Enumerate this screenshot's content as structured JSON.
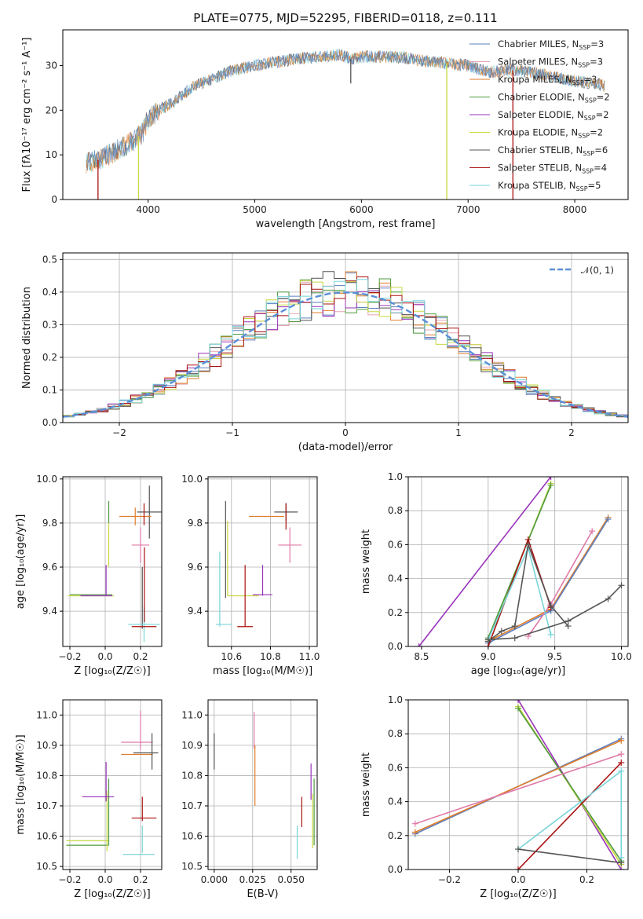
{
  "figure": {
    "title": "PLATE=0775, MJD=52295, FIBERID=0118, z=0.111"
  },
  "colors": {
    "Chabrier MILES": "#5b7fbf",
    "Salpeter MILES": "#e5a3b0",
    "Kroupa MILES": "#e07d2a",
    "Chabrier ELODIE": "#4e9a3e",
    "Salpeter ELODIE": "#9933bb",
    "Kroupa ELODIE": "#c8d840",
    "Chabrier STELIB": "#555555",
    "Salpeter STELIB": "#aa1111",
    "Kroupa STELIB": "#77d4d8",
    "Chabrier MILES (main)": "#5b7fbf",
    "normal_curve": "#5b8fd6",
    "pink": "#e07aa8",
    "grid": "#b0b0b0"
  },
  "chart_data": [
    {
      "id": "spectrum",
      "type": "line",
      "title": "PLATE=0775, MJD=52295, FIBERID=0118, z=0.111",
      "xlabel": "wavelength [Angstrom, rest frame]",
      "ylabel": "Flux [fλ10⁻¹⁷ erg cm⁻² s⁻¹ A⁻¹]",
      "xlim": [
        3200,
        8500
      ],
      "ylim": [
        0,
        38
      ],
      "xticks": [
        "4000",
        "5000",
        "6000",
        "7000",
        "8000"
      ],
      "yticks": [
        "0",
        "10",
        "20",
        "30"
      ],
      "grid": false,
      "legend_position": "right",
      "legend": [
        {
          "label": "Chabrier MILES, N",
          "sub": "SSP",
          "val": "=3",
          "color": "#5b7fbf"
        },
        {
          "label": "Salpeter MILES, N",
          "sub": "SSP",
          "val": "=3",
          "color": "#e5a3b0"
        },
        {
          "label": "Kroupa MILES, N",
          "sub": "SSP",
          "val": "=3",
          "color": "#e07d2a"
        },
        {
          "label": "Chabrier ELODIE, N",
          "sub": "SSP",
          "val": "=2",
          "color": "#4e9a3e"
        },
        {
          "label": "Salpeter ELODIE, N",
          "sub": "SSP",
          "val": "=2",
          "color": "#9933bb"
        },
        {
          "label": "Kroupa ELODIE, N",
          "sub": "SSP",
          "val": "=2",
          "color": "#c8d840"
        },
        {
          "label": "Chabrier STELIB, N",
          "sub": "SSP",
          "val": "=6",
          "color": "#555555"
        },
        {
          "label": "Salpeter STELIB, N",
          "sub": "SSP",
          "val": "=4",
          "color": "#aa1111"
        },
        {
          "label": "Kroupa STELIB, N",
          "sub": "SSP",
          "val": "=5",
          "color": "#77d4d8"
        }
      ],
      "continuum": [
        [
          3420,
          8
        ],
        [
          3550,
          9
        ],
        [
          3700,
          11
        ],
        [
          3850,
          13
        ],
        [
          3950,
          15
        ],
        [
          4000,
          18
        ],
        [
          4100,
          20
        ],
        [
          4250,
          22
        ],
        [
          4400,
          25
        ],
        [
          4600,
          27
        ],
        [
          4800,
          29
        ],
        [
          5000,
          30
        ],
        [
          5200,
          30.8
        ],
        [
          5400,
          31.5
        ],
        [
          5600,
          32
        ],
        [
          5800,
          32.5
        ],
        [
          5900,
          31.5
        ],
        [
          6000,
          32
        ],
        [
          6200,
          32
        ],
        [
          6400,
          31.8
        ],
        [
          6600,
          31
        ],
        [
          6800,
          30.5
        ],
        [
          7000,
          30
        ],
        [
          7200,
          28.5
        ],
        [
          7400,
          29
        ],
        [
          7600,
          28.5
        ],
        [
          7800,
          27.5
        ],
        [
          8000,
          26.5
        ],
        [
          8200,
          26
        ],
        [
          8280,
          25.5
        ]
      ],
      "dips": [
        {
          "x": 3530,
          "y": 0,
          "color": "#aa1111"
        },
        {
          "x": 3910,
          "y": 0,
          "color": "#c8d840"
        },
        {
          "x": 6800,
          "y": 0,
          "color": "#c8d840"
        },
        {
          "x": 7420,
          "y": 0,
          "color": "#aa1111"
        },
        {
          "x": 5900,
          "y": 26,
          "color": "#555555"
        }
      ]
    },
    {
      "id": "residuals",
      "type": "histogram",
      "xlabel": "(data-model)/error",
      "ylabel": "Normed distribution",
      "xlim": [
        -2.5,
        2.5
      ],
      "ylim": [
        0,
        0.52
      ],
      "xticks": [
        "−2",
        "−1",
        "0",
        "1",
        "2"
      ],
      "yticks": [
        "0.0",
        "0.1",
        "0.2",
        "0.3",
        "0.4",
        "0.5"
      ],
      "grid": true,
      "legend_position": "top-right",
      "legend": [
        {
          "label": "𝒩(0, 1)",
          "color": "#5b8fd6"
        }
      ],
      "bin_width": 0.1,
      "bin_start": -2.5
    },
    {
      "id": "age-vs-Z",
      "type": "scatter",
      "xlabel": "Z [log₁₀(Z/Z☉)]",
      "ylabel": "age  [log₁₀(age/yr)]",
      "xlim": [
        -0.24,
        0.32
      ],
      "ylim": [
        9.24,
        10.01
      ],
      "xticks": [
        "−0.2",
        "0.0",
        "0.2"
      ],
      "yticks": [
        "9.4",
        "9.6",
        "9.8",
        "10.0"
      ],
      "grid": true,
      "points": [
        {
          "x": 0.02,
          "y": 9.85,
          "xerr": 0,
          "yerr": 0.05,
          "color": "#4e9a3e"
        },
        {
          "x": 0.02,
          "y": 9.7,
          "xerr": 0,
          "yerr": 0.1,
          "color": "#c8d840"
        },
        {
          "x": 0.25,
          "y": 9.85,
          "xerr": 0.07,
          "yerr": 0.12,
          "color": "#555555"
        },
        {
          "x": 0.17,
          "y": 9.83,
          "xerr": 0.09,
          "yerr": 0.04,
          "color": "#e07d2a"
        },
        {
          "x": 0.22,
          "y": 9.84,
          "xerr": 0,
          "yerr": 0.05,
          "color": "#aa1111"
        },
        {
          "x": 0.2,
          "y": 9.7,
          "xerr": 0.05,
          "yerr": 0.08,
          "color": "#e07aa8"
        },
        {
          "x": -0.08,
          "y": 9.475,
          "xerr": 0.12,
          "yerr": 0,
          "color": "#4e9a3e"
        },
        {
          "x": -0.08,
          "y": 9.47,
          "xerr": 0.13,
          "yerr": 0,
          "color": "#c8d840"
        },
        {
          "x": -0.05,
          "y": 9.47,
          "xerr": 0.09,
          "yerr": 0,
          "color": "#9933bb"
        },
        {
          "x": 0.005,
          "y": 9.54,
          "xerr": 0,
          "yerr": 0.07,
          "color": "#9933bb"
        },
        {
          "x": 0.21,
          "y": 9.46,
          "xerr": 0,
          "yerr": 0.14,
          "color": "#555555"
        },
        {
          "x": 0.22,
          "y": 9.34,
          "xerr": 0.09,
          "yerr": 0.08,
          "color": "#77d4d8"
        },
        {
          "x": 0.22,
          "y": 9.33,
          "xerr": 0.07,
          "yerr": 0,
          "color": "#aa1111"
        },
        {
          "x": 0.222,
          "y": 9.52,
          "xerr": 0,
          "yerr": 0.17,
          "color": "#aa1111"
        }
      ]
    },
    {
      "id": "age-vs-mass",
      "type": "scatter",
      "xlabel": "mass [log₁₀(M/M☉)]",
      "ylabel": "",
      "xlim": [
        10.48,
        11.04
      ],
      "ylim": [
        9.24,
        10.01
      ],
      "xticks": [
        "10.6",
        "10.8",
        "11.0"
      ],
      "yticks": [
        "9.4",
        "9.6",
        "9.8",
        "10.0"
      ],
      "grid": true,
      "points": [
        {
          "x": 10.57,
          "y": 9.68,
          "xerr": 0,
          "yerr": 0.22,
          "color": "#555555"
        },
        {
          "x": 10.58,
          "y": 9.64,
          "xerr": 0,
          "yerr": 0.17,
          "color": "#c8d840"
        },
        {
          "x": 10.54,
          "y": 9.5,
          "xerr": 0,
          "yerr": 0.17,
          "color": "#77d4d8"
        },
        {
          "x": 10.56,
          "y": 9.34,
          "xerr": 0.04,
          "yerr": 0,
          "color": "#77d4d8"
        },
        {
          "x": 10.66,
          "y": 9.47,
          "xerr": 0.08,
          "yerr": 0,
          "color": "#c8d840"
        },
        {
          "x": 10.76,
          "y": 9.475,
          "xerr": 0.05,
          "yerr": 0,
          "color": "#9933bb"
        },
        {
          "x": 10.76,
          "y": 9.54,
          "xerr": 0,
          "yerr": 0.07,
          "color": "#9933bb"
        },
        {
          "x": 10.67,
          "y": 9.47,
          "xerr": 0,
          "yerr": 0.14,
          "color": "#aa1111"
        },
        {
          "x": 10.67,
          "y": 9.33,
          "xerr": 0.04,
          "yerr": 0,
          "color": "#aa1111"
        },
        {
          "x": 10.78,
          "y": 9.83,
          "xerr": 0.09,
          "yerr": 0,
          "color": "#e07d2a"
        },
        {
          "x": 10.88,
          "y": 9.85,
          "xerr": 0.06,
          "yerr": 0.04,
          "color": "#555555"
        },
        {
          "x": 10.88,
          "y": 9.83,
          "xerr": 0,
          "yerr": 0.06,
          "color": "#aa1111"
        },
        {
          "x": 10.9,
          "y": 9.7,
          "xerr": 0.06,
          "yerr": 0.08,
          "color": "#e07aa8"
        }
      ]
    },
    {
      "id": "weight-vs-age",
      "type": "line",
      "xlabel": "age  [log₁₀(age/yr)]",
      "ylabel": "mass weight",
      "xlim": [
        8.4,
        10.05
      ],
      "ylim": [
        0,
        1
      ],
      "xticks": [
        "8.5",
        "9.0",
        "9.5",
        "10.0"
      ],
      "yticks": [
        "0.0",
        "0.2",
        "0.4",
        "0.6",
        "0.8",
        "1.0"
      ],
      "grid": true,
      "series": [
        {
          "color": "#9933bb",
          "x": [
            8.48,
            9.47
          ],
          "y": [
            0.0,
            1.0
          ]
        },
        {
          "color": "#c8d840",
          "x": [
            9.0,
            9.47
          ],
          "y": [
            0.04,
            0.96
          ]
        },
        {
          "color": "#4e9a3e",
          "x": [
            9.0,
            9.47
          ],
          "y": [
            0.05,
            0.95
          ]
        },
        {
          "color": "#e07d2a",
          "x": [
            9.0,
            9.47,
            9.9
          ],
          "y": [
            0.03,
            0.22,
            0.76
          ]
        },
        {
          "color": "#5b7fbf",
          "x": [
            9.0,
            9.47,
            9.9
          ],
          "y": [
            0.02,
            0.21,
            0.75
          ]
        },
        {
          "color": "#e07aa8",
          "x": [
            9.3,
            9.47,
            9.78
          ],
          "y": [
            0.06,
            0.25,
            0.68
          ]
        },
        {
          "color": "#aa1111",
          "x": [
            9.0,
            9.3,
            9.47
          ],
          "y": [
            0.0,
            0.63,
            0.23
          ]
        },
        {
          "color": "#77d4d8",
          "x": [
            9.0,
            9.3,
            9.47
          ],
          "y": [
            0.04,
            0.58,
            0.07
          ]
        },
        {
          "color": "#555555",
          "x": [
            9.0,
            9.1,
            9.2,
            9.3,
            9.47,
            9.6
          ],
          "y": [
            0.03,
            0.09,
            0.12,
            0.6,
            0.24,
            0.12
          ]
        },
        {
          "color": "#555555",
          "x": [
            9.0,
            9.2,
            9.6,
            9.9,
            10.0
          ],
          "y": [
            0.04,
            0.05,
            0.15,
            0.28,
            0.36
          ]
        }
      ]
    },
    {
      "id": "mass-vs-Z",
      "type": "scatter",
      "xlabel": "Z [log₁₀(Z/Z☉)]",
      "ylabel": "mass [log₁₀(M/M☉)]",
      "xlim": [
        -0.24,
        0.32
      ],
      "ylim": [
        10.49,
        11.05
      ],
      "xticks": [
        "−0.2",
        "0.0",
        "0.2"
      ],
      "yticks": [
        "10.5",
        "10.6",
        "10.7",
        "10.8",
        "10.9",
        "11.0"
      ],
      "grid": true,
      "points": [
        {
          "x": -0.1,
          "y": 10.585,
          "xerr": 0.12,
          "yerr": 0,
          "color": "#c8d840"
        },
        {
          "x": -0.1,
          "y": 10.57,
          "xerr": 0.12,
          "yerr": 0,
          "color": "#4e9a3e"
        },
        {
          "x": 0.02,
          "y": 10.68,
          "xerr": 0,
          "yerr": 0.11,
          "color": "#4e9a3e"
        },
        {
          "x": 0.01,
          "y": 10.65,
          "xerr": 0,
          "yerr": 0.1,
          "color": "#c8d840"
        },
        {
          "x": -0.04,
          "y": 10.73,
          "xerr": 0.09,
          "yerr": 0,
          "color": "#9933bb"
        },
        {
          "x": 0.005,
          "y": 10.78,
          "xerr": 0,
          "yerr": 0.065,
          "color": "#9933bb"
        },
        {
          "x": 0.18,
          "y": 10.91,
          "xerr": 0.09,
          "yerr": 0,
          "color": "#e07aa8"
        },
        {
          "x": 0.2,
          "y": 10.95,
          "xerr": 0,
          "yerr": 0.065,
          "color": "#e07aa8"
        },
        {
          "x": 0.18,
          "y": 10.87,
          "xerr": 0.09,
          "yerr": 0,
          "color": "#e07d2a"
        },
        {
          "x": 0.23,
          "y": 10.875,
          "xerr": 0.07,
          "yerr": 0,
          "color": "#555555"
        },
        {
          "x": 0.265,
          "y": 10.88,
          "xerr": 0,
          "yerr": 0.06,
          "color": "#555555"
        },
        {
          "x": 0.22,
          "y": 10.66,
          "xerr": 0.07,
          "yerr": 0,
          "color": "#aa1111"
        },
        {
          "x": 0.21,
          "y": 10.69,
          "xerr": 0,
          "yerr": 0.04,
          "color": "#aa1111"
        },
        {
          "x": 0.19,
          "y": 10.54,
          "xerr": 0.09,
          "yerr": 0,
          "color": "#77d4d8"
        },
        {
          "x": 0.21,
          "y": 10.59,
          "xerr": 0,
          "yerr": 0.045,
          "color": "#77d4d8"
        }
      ]
    },
    {
      "id": "mass-vs-EBV",
      "type": "scatter",
      "xlabel": "E(B-V)",
      "ylabel": "",
      "xlim": [
        -0.004,
        0.067
      ],
      "ylim": [
        10.49,
        11.05
      ],
      "xticks": [
        "0.000",
        "0.025",
        "0.050"
      ],
      "yticks": [
        "10.5",
        "10.6",
        "10.7",
        "10.8",
        "10.9",
        "11.0"
      ],
      "grid": true,
      "points": [
        {
          "x": 0.0,
          "y": 10.88,
          "xerr": 0,
          "yerr": 0.06,
          "color": "#555555"
        },
        {
          "x": 0.026,
          "y": 10.95,
          "xerr": 0,
          "yerr": 0.06,
          "color": "#e07aa8"
        },
        {
          "x": 0.0265,
          "y": 10.8,
          "xerr": 0,
          "yerr": 0.1,
          "color": "#e07d2a"
        },
        {
          "x": 0.054,
          "y": 10.58,
          "xerr": 0,
          "yerr": 0.055,
          "color": "#77d4d8"
        },
        {
          "x": 0.057,
          "y": 10.68,
          "xerr": 0,
          "yerr": 0.05,
          "color": "#aa1111"
        },
        {
          "x": 0.063,
          "y": 10.78,
          "xerr": 0,
          "yerr": 0.06,
          "color": "#9933bb"
        },
        {
          "x": 0.065,
          "y": 10.68,
          "xerr": 0,
          "yerr": 0.11,
          "color": "#4e9a3e"
        },
        {
          "x": 0.064,
          "y": 10.65,
          "xerr": 0,
          "yerr": 0.09,
          "color": "#c8d840"
        }
      ]
    },
    {
      "id": "weight-vs-Z",
      "type": "line",
      "xlabel": "Z [log₁₀(Z/Z☉)]",
      "ylabel": "mass weight",
      "xlim": [
        -0.32,
        0.32
      ],
      "ylim": [
        0,
        1
      ],
      "xticks": [
        "−0.2",
        "0.0",
        "0.2"
      ],
      "yticks": [
        "0.0",
        "0.2",
        "0.4",
        "0.6",
        "0.8",
        "1.0"
      ],
      "grid": true,
      "series": [
        {
          "color": "#9933bb",
          "x": [
            0.0,
            0.3
          ],
          "y": [
            1.0,
            0.0
          ]
        },
        {
          "color": "#c8d840",
          "x": [
            0.0,
            0.3
          ],
          "y": [
            0.96,
            0.03
          ]
        },
        {
          "color": "#4e9a3e",
          "x": [
            0.0,
            0.3
          ],
          "y": [
            0.95,
            0.05
          ]
        },
        {
          "color": "#5b7fbf",
          "x": [
            -0.3,
            0.3
          ],
          "y": [
            0.21,
            0.77
          ]
        },
        {
          "color": "#e07d2a",
          "x": [
            -0.3,
            0.3
          ],
          "y": [
            0.22,
            0.76
          ]
        },
        {
          "color": "#e07aa8",
          "x": [
            -0.3,
            0.3
          ],
          "y": [
            0.27,
            0.68
          ]
        },
        {
          "color": "#aa1111",
          "x": [
            0.0,
            0.3
          ],
          "y": [
            0.0,
            0.63
          ]
        },
        {
          "color": "#77d4d8",
          "x": [
            0.0,
            0.3,
            0.3
          ],
          "y": [
            0.12,
            0.58,
            0.07
          ]
        },
        {
          "color": "#555555",
          "x": [
            0.0,
            0.3
          ],
          "y": [
            0.12,
            0.04
          ]
        }
      ]
    }
  ]
}
